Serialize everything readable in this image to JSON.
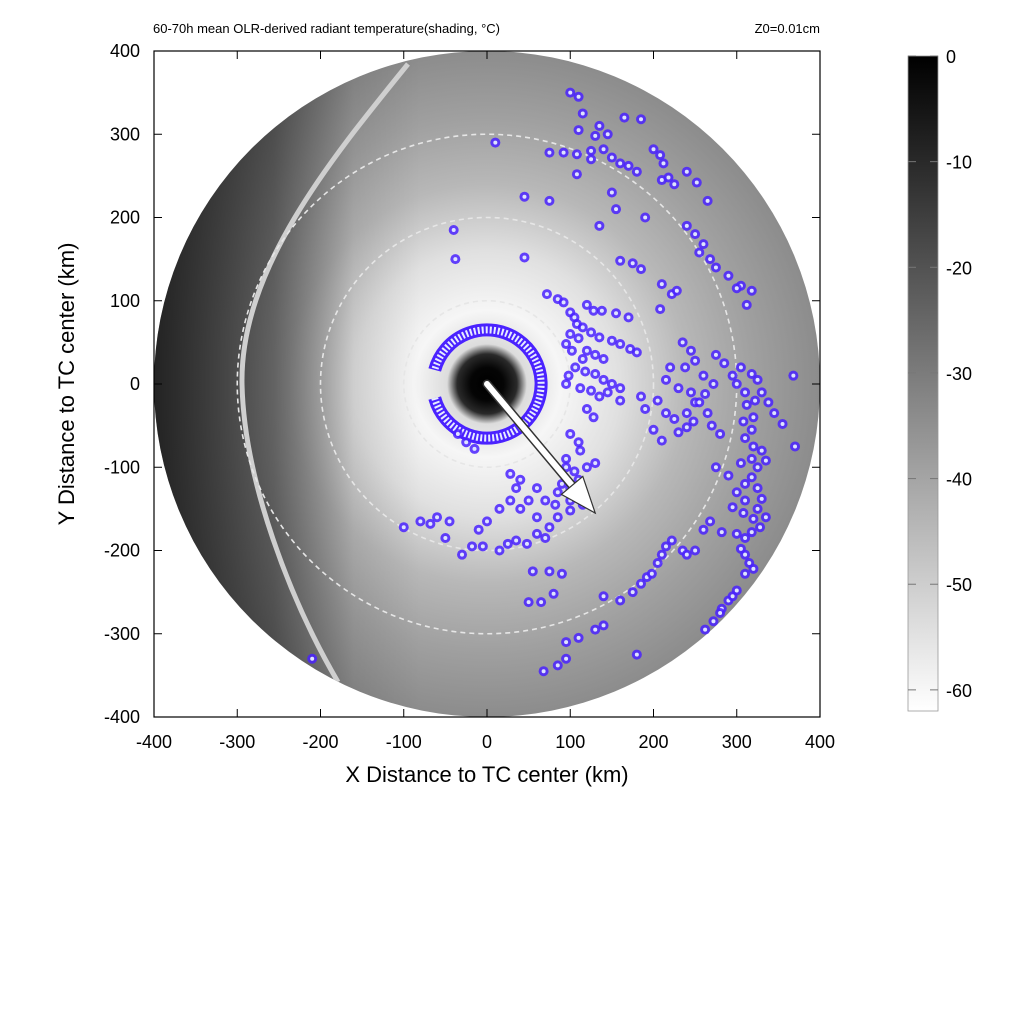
{
  "chart_data": {
    "type": "heatmap",
    "title": "60-70h mean OLR-derived radiant temperature(shading, °C)",
    "title_parts": {
      "before": "60-70h mean OLR-derived radiant temperature(shading, ",
      "unit": "°C",
      "after": ")"
    },
    "annotation_right": "Z0=0.01cm",
    "xlabel": "X Distance to TC center (km)",
    "ylabel": "Y Distance to TC center (km)",
    "xlim": [
      -400,
      400
    ],
    "ylim": [
      -400,
      400
    ],
    "xticks": [
      -400,
      -300,
      -200,
      -100,
      0,
      100,
      200,
      300,
      400
    ],
    "yticks": [
      -400,
      -300,
      -200,
      -100,
      0,
      100,
      200,
      300,
      400
    ],
    "colorbar": {
      "range": [
        -62,
        0
      ],
      "ticks": [
        0,
        -10,
        -20,
        -30,
        -40,
        -50,
        -60
      ],
      "colormap": [
        "#ffffff",
        "#000000"
      ]
    },
    "domain_radius_km": 400,
    "range_rings_km": [
      100,
      200,
      300
    ],
    "motion_vector": {
      "from": [
        0,
        0
      ],
      "to": [
        130,
        -155
      ],
      "color": "#ffffff"
    },
    "contour_color": "#4a22ff",
    "convective_cells": [
      [
        100,
        350
      ],
      [
        110,
        345
      ],
      [
        165,
        320
      ],
      [
        185,
        318
      ],
      [
        115,
        325
      ],
      [
        135,
        310
      ],
      [
        110,
        305
      ],
      [
        130,
        298
      ],
      [
        145,
        300
      ],
      [
        75,
        278
      ],
      [
        92,
        278
      ],
      [
        108,
        276
      ],
      [
        125,
        280
      ],
      [
        140,
        282
      ],
      [
        150,
        272
      ],
      [
        160,
        265
      ],
      [
        170,
        262
      ],
      [
        180,
        255
      ],
      [
        200,
        282
      ],
      [
        208,
        275
      ],
      [
        212,
        265
      ],
      [
        210,
        245
      ],
      [
        218,
        248
      ],
      [
        225,
        240
      ],
      [
        240,
        255
      ],
      [
        252,
        242
      ],
      [
        265,
        220
      ],
      [
        108,
        252
      ],
      [
        125,
        270
      ],
      [
        -40,
        185
      ],
      [
        45,
        225
      ],
      [
        75,
        220
      ],
      [
        150,
        230
      ],
      [
        155,
        210
      ],
      [
        135,
        190
      ],
      [
        240,
        190
      ],
      [
        250,
        180
      ],
      [
        260,
        168
      ],
      [
        255,
        158
      ],
      [
        268,
        150
      ],
      [
        275,
        140
      ],
      [
        290,
        130
      ],
      [
        305,
        118
      ],
      [
        300,
        115
      ],
      [
        318,
        112
      ],
      [
        312,
        95
      ],
      [
        -38,
        150
      ],
      [
        45,
        152
      ],
      [
        160,
        148
      ],
      [
        175,
        145
      ],
      [
        185,
        138
      ],
      [
        72,
        108
      ],
      [
        85,
        102
      ],
      [
        92,
        98
      ],
      [
        100,
        86
      ],
      [
        105,
        80
      ],
      [
        108,
        72
      ],
      [
        115,
        68
      ],
      [
        125,
        62
      ],
      [
        135,
        56
      ],
      [
        150,
        52
      ],
      [
        160,
        48
      ],
      [
        172,
        42
      ],
      [
        180,
        38
      ],
      [
        138,
        88
      ],
      [
        155,
        85
      ],
      [
        170,
        80
      ],
      [
        120,
        95
      ],
      [
        128,
        88
      ],
      [
        100,
        60
      ],
      [
        110,
        55
      ],
      [
        95,
        48
      ],
      [
        102,
        40
      ],
      [
        120,
        40
      ],
      [
        130,
        35
      ],
      [
        140,
        30
      ],
      [
        115,
        30
      ],
      [
        106,
        20
      ],
      [
        98,
        10
      ],
      [
        118,
        15
      ],
      [
        130,
        12
      ],
      [
        140,
        5
      ],
      [
        150,
        0
      ],
      [
        95,
        0
      ],
      [
        112,
        -5
      ],
      [
        125,
        -8
      ],
      [
        135,
        -15
      ],
      [
        145,
        -10
      ],
      [
        160,
        -5
      ],
      [
        160,
        -20
      ],
      [
        185,
        -15
      ],
      [
        190,
        -30
      ],
      [
        205,
        -20
      ],
      [
        215,
        -35
      ],
      [
        225,
        -42
      ],
      [
        200,
        -55
      ],
      [
        210,
        -68
      ],
      [
        230,
        -58
      ],
      [
        240,
        -52
      ],
      [
        248,
        -45
      ],
      [
        120,
        -30
      ],
      [
        128,
        -40
      ],
      [
        100,
        -60
      ],
      [
        110,
        -70
      ],
      [
        112,
        -80
      ],
      [
        95,
        -90
      ],
      [
        95,
        -100
      ],
      [
        105,
        -105
      ],
      [
        120,
        -100
      ],
      [
        130,
        -95
      ],
      [
        110,
        -115
      ],
      [
        90,
        -120
      ],
      [
        85,
        -130
      ],
      [
        100,
        -125
      ],
      [
        60,
        -125
      ],
      [
        70,
        -140
      ],
      [
        82,
        -145
      ],
      [
        100,
        -140
      ],
      [
        115,
        -145
      ],
      [
        100,
        -152
      ],
      [
        85,
        -160
      ],
      [
        75,
        -172
      ],
      [
        70,
        -185
      ],
      [
        60,
        -180
      ],
      [
        48,
        -192
      ],
      [
        35,
        -188
      ],
      [
        25,
        -192
      ],
      [
        15,
        -200
      ],
      [
        -5,
        -195
      ],
      [
        -18,
        -195
      ],
      [
        -30,
        -205
      ],
      [
        -10,
        -175
      ],
      [
        0,
        -165
      ],
      [
        15,
        -150
      ],
      [
        28,
        -140
      ],
      [
        50,
        -140
      ],
      [
        60,
        -160
      ],
      [
        40,
        -150
      ],
      [
        28,
        -108
      ],
      [
        35,
        -125
      ],
      [
        40,
        -115
      ],
      [
        -45,
        -165
      ],
      [
        -60,
        -160
      ],
      [
        -68,
        -168
      ],
      [
        -80,
        -165
      ],
      [
        -100,
        -172
      ],
      [
        -50,
        -185
      ],
      [
        55,
        -225
      ],
      [
        75,
        -225
      ],
      [
        90,
        -228
      ],
      [
        50,
        -262
      ],
      [
        65,
        -262
      ],
      [
        80,
        -252
      ],
      [
        140,
        -255
      ],
      [
        160,
        -260
      ],
      [
        175,
        -250
      ],
      [
        185,
        -240
      ],
      [
        192,
        -232
      ],
      [
        198,
        -228
      ],
      [
        205,
        -215
      ],
      [
        210,
        -205
      ],
      [
        215,
        -195
      ],
      [
        222,
        -188
      ],
      [
        235,
        -200
      ],
      [
        240,
        -205
      ],
      [
        250,
        -200
      ],
      [
        260,
        -175
      ],
      [
        268,
        -165
      ],
      [
        282,
        -178
      ],
      [
        300,
        -180
      ],
      [
        310,
        -185
      ],
      [
        318,
        -178
      ],
      [
        328,
        -172
      ],
      [
        335,
        -160
      ],
      [
        325,
        -150
      ],
      [
        310,
        -140
      ],
      [
        300,
        -130
      ],
      [
        310,
        -120
      ],
      [
        318,
        -112
      ],
      [
        325,
        -125
      ],
      [
        330,
        -138
      ],
      [
        320,
        -162
      ],
      [
        308,
        -155
      ],
      [
        295,
        -148
      ],
      [
        305,
        -198
      ],
      [
        310,
        -205
      ],
      [
        315,
        -215
      ],
      [
        320,
        -222
      ],
      [
        310,
        -228
      ],
      [
        300,
        -248
      ],
      [
        290,
        -260
      ],
      [
        282,
        -270
      ],
      [
        272,
        -285
      ],
      [
        262,
        -295
      ],
      [
        280,
        -275
      ],
      [
        295,
        -255
      ],
      [
        275,
        -100
      ],
      [
        290,
        -110
      ],
      [
        305,
        -95
      ],
      [
        318,
        -90
      ],
      [
        325,
        -100
      ],
      [
        335,
        -92
      ],
      [
        330,
        -80
      ],
      [
        320,
        -75
      ],
      [
        310,
        -65
      ],
      [
        318,
        -55
      ],
      [
        308,
        -45
      ],
      [
        320,
        -40
      ],
      [
        312,
        -25
      ],
      [
        322,
        -20
      ],
      [
        310,
        -10
      ],
      [
        300,
        0
      ],
      [
        295,
        10
      ],
      [
        305,
        20
      ],
      [
        318,
        12
      ],
      [
        325,
        5
      ],
      [
        330,
        -10
      ],
      [
        338,
        -22
      ],
      [
        345,
        -35
      ],
      [
        355,
        -48
      ],
      [
        370,
        -75
      ],
      [
        368,
        10
      ],
      [
        235,
        50
      ],
      [
        245,
        40
      ],
      [
        250,
        28
      ],
      [
        238,
        20
      ],
      [
        260,
        10
      ],
      [
        272,
        0
      ],
      [
        262,
        -12
      ],
      [
        250,
        -22
      ],
      [
        240,
        -35
      ],
      [
        275,
        35
      ],
      [
        285,
        25
      ],
      [
        220,
        20
      ],
      [
        215,
        5
      ],
      [
        230,
        -5
      ],
      [
        245,
        -10
      ],
      [
        255,
        -22
      ],
      [
        265,
        -35
      ],
      [
        270,
        -50
      ],
      [
        280,
        -60
      ],
      [
        208,
        90
      ],
      [
        222,
        108
      ],
      [
        228,
        112
      ],
      [
        210,
        120
      ],
      [
        190,
        200
      ],
      [
        95,
        -310
      ],
      [
        110,
        -305
      ],
      [
        130,
        -295
      ],
      [
        140,
        -290
      ],
      [
        180,
        -325
      ],
      [
        68,
        -345
      ],
      [
        85,
        -338
      ],
      [
        95,
        -330
      ],
      [
        -35,
        -60
      ],
      [
        -25,
        -70
      ],
      [
        -15,
        -78
      ],
      [
        -210,
        -330
      ],
      [
        10,
        290
      ]
    ],
    "eyewall_ring": {
      "radius_km": 65,
      "arc_deg": [
        -165,
        165
      ],
      "note": "bright ring around black eye, open to the west"
    },
    "frontal_band": "bright curved line along western edge"
  }
}
